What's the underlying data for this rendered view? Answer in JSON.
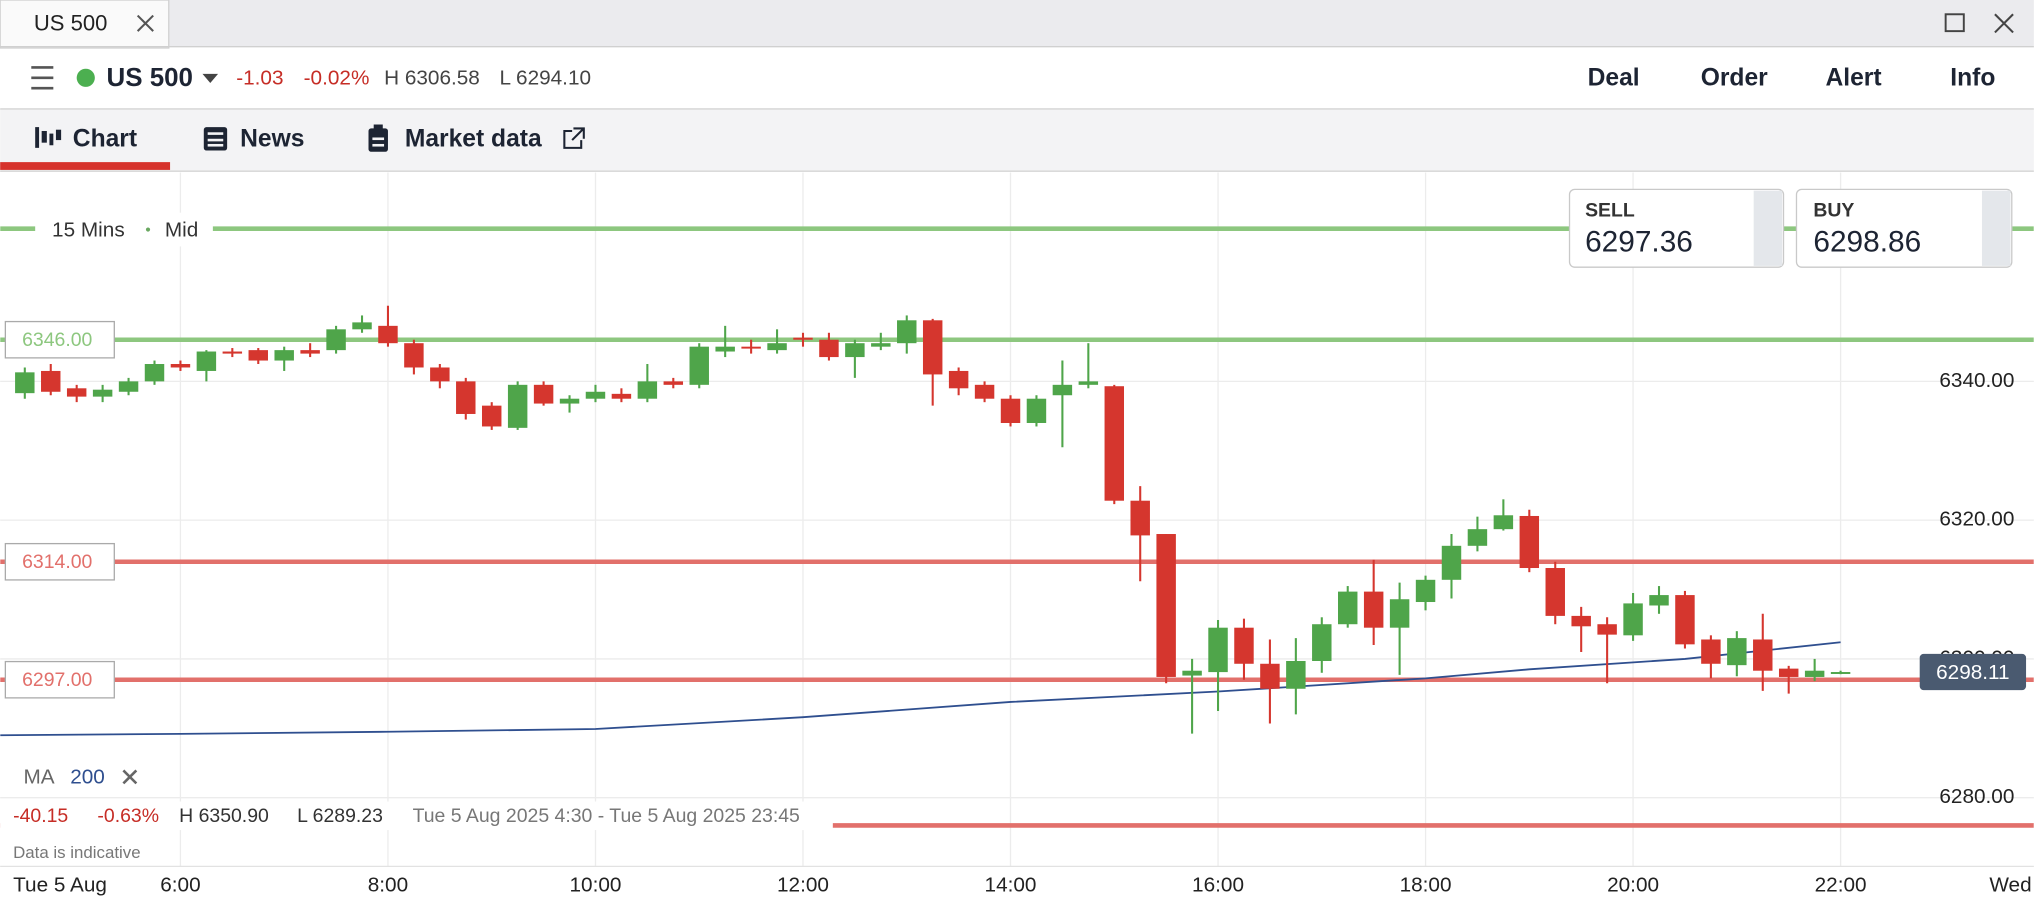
{
  "window": {
    "tab": "US 500"
  },
  "header": {
    "instrument": "US 500",
    "change": "-1.03",
    "change_pct": "-0.02%",
    "high": "H 6306.58",
    "low": "L 6294.10",
    "actions": [
      "Deal",
      "Order",
      "Alert",
      "Info"
    ]
  },
  "tabs": [
    "Chart",
    "News",
    "Market data"
  ],
  "quote": {
    "sell_label": "SELL",
    "sell": "6297.36",
    "buy_label": "BUY",
    "buy": "6298.86"
  },
  "chart_controls": {
    "timeframe": "15 Mins",
    "price_type": "Mid"
  },
  "summary": {
    "change": "-40.15",
    "change_pct": "-0.63%",
    "high": "H 6350.90",
    "low": "L 6289.23",
    "range": "Tue 5 Aug 2025 4:30 - Tue 5 Aug 2025 23:45",
    "note": "Data is indicative"
  },
  "chart_data": {
    "type": "candlestick",
    "x": [
      4.5,
      4.75,
      5,
      5.25,
      5.5,
      5.75,
      6,
      6.25,
      6.5,
      6.75,
      7,
      7.25,
      7.5,
      7.75,
      8,
      8.25,
      8.5,
      8.75,
      9,
      9.25,
      9.5,
      9.75,
      10,
      10.25,
      10.5,
      10.75,
      11,
      11.25,
      11.5,
      11.75,
      12,
      12.25,
      12.5,
      12.75,
      13,
      13.25,
      13.5,
      13.75,
      14,
      14.25,
      14.5,
      14.75,
      15,
      15.25,
      15.5,
      15.75,
      16,
      16.25,
      16.5,
      16.75,
      17,
      17.25,
      17.5,
      17.75,
      18,
      18.25,
      18.5,
      18.75,
      19,
      19.25,
      19.5,
      19.75,
      20,
      20.25,
      20.5,
      20.75,
      21,
      21.25,
      21.5,
      21.75,
      22
    ],
    "open": [
      6338.3,
      6341.5,
      6339,
      6337.8,
      6338.5,
      6340,
      6342.5,
      6341.5,
      6344.3,
      6344.5,
      6343,
      6344.5,
      6344.5,
      6347.5,
      6348,
      6345.5,
      6342,
      6340,
      6336.5,
      6333.3,
      6339.5,
      6336.8,
      6337.5,
      6338.2,
      6337.5,
      6340,
      6339.5,
      6344.3,
      6345,
      6344.5,
      6346.3,
      6346,
      6343.5,
      6345,
      6345.5,
      6348.8,
      6341.5,
      6339.5,
      6337.5,
      6334,
      6338,
      6339.5,
      6339.3,
      6322.8,
      6318,
      6297.6,
      6298.1,
      6304.5,
      6299.3,
      6295.7,
      6299.7,
      6305,
      6309.7,
      6304.5,
      6308.2,
      6311.4,
      6316.3,
      6318.7,
      6320.6,
      6313.1,
      6306.2,
      6305,
      6303.4,
      6307.7,
      6309.2,
      6302.8,
      6299.1,
      6302.8,
      6298.6,
      6297.4,
      6298
    ],
    "high": [
      6342,
      6342.5,
      6339.5,
      6339.5,
      6340.5,
      6343,
      6343,
      6344.5,
      6344.8,
      6344.8,
      6345,
      6345.5,
      6348,
      6349.5,
      6350.9,
      6346,
      6342.5,
      6340.5,
      6337,
      6340,
      6340,
      6338,
      6339.5,
      6339,
      6342.5,
      6340.5,
      6345.5,
      6348,
      6346,
      6347.5,
      6347,
      6347,
      6346,
      6347,
      6349.5,
      6349,
      6342,
      6340,
      6338,
      6338,
      6343,
      6345.5,
      6339.5,
      6324.9,
      6318,
      6300,
      6305.6,
      6305.8,
      6302.8,
      6303,
      6306,
      6310.5,
      6314.3,
      6311,
      6312,
      6318,
      6320.5,
      6323,
      6321.5,
      6314,
      6307.5,
      6306,
      6309.5,
      6310.5,
      6309.8,
      6303.4,
      6304,
      6306.5,
      6299,
      6300,
      6298.3
    ],
    "low": [
      6337.5,
      6338,
      6337,
      6337,
      6338,
      6339.5,
      6341.5,
      6340,
      6343.5,
      6342.5,
      6341.5,
      6343.5,
      6344,
      6347,
      6345,
      6341,
      6339,
      6334.5,
      6333,
      6333,
      6336.5,
      6335.5,
      6337,
      6337,
      6337,
      6339,
      6339,
      6343.5,
      6344,
      6344,
      6345,
      6343,
      6340.5,
      6344.5,
      6344,
      6336.5,
      6338,
      6337,
      6333.5,
      6333.5,
      6330.5,
      6339,
      6322.3,
      6311.2,
      6296.5,
      6289.23,
      6292.5,
      6297,
      6290.7,
      6292,
      6298,
      6304.5,
      6302,
      6297.7,
      6307,
      6308.7,
      6315.5,
      6318.5,
      6312.5,
      6305,
      6301,
      6296.5,
      6302.6,
      6306.5,
      6301.5,
      6297.2,
      6297.5,
      6295.4,
      6295,
      6296.8,
      6297.8
    ],
    "close": [
      6341.3,
      6338.5,
      6337.8,
      6338.8,
      6340,
      6342.5,
      6342,
      6344.3,
      6344,
      6343,
      6344.5,
      6344,
      6347.5,
      6348.5,
      6345.5,
      6342,
      6340,
      6335.3,
      6333.5,
      6339.5,
      6336.8,
      6337.5,
      6338.5,
      6337.5,
      6340,
      6339.5,
      6345,
      6345,
      6344.8,
      6345.5,
      6346,
      6343.5,
      6345.5,
      6345.5,
      6348.8,
      6341,
      6339,
      6337.5,
      6334,
      6337.5,
      6339.5,
      6340,
      6322.8,
      6317.8,
      6297.4,
      6298.3,
      6304.5,
      6299.3,
      6295.7,
      6299.7,
      6305,
      6309.7,
      6304.5,
      6308.6,
      6311.4,
      6316.3,
      6318.7,
      6320.7,
      6313.1,
      6306.2,
      6304.7,
      6303.5,
      6308,
      6309.2,
      6302.1,
      6299.3,
      6303,
      6298.3,
      6297.4,
      6298.3,
      6298.11
    ],
    "up_color": "#4fa54a",
    "down_color": "#d5362e",
    "xlim": [
      4.2625,
      23.8625
    ],
    "xticks": [
      {
        "value": 6,
        "label": "6:00"
      },
      {
        "value": 8,
        "label": "8:00"
      },
      {
        "value": 10,
        "label": "10:00"
      },
      {
        "value": 12,
        "label": "12:00"
      },
      {
        "value": 14,
        "label": "14:00"
      },
      {
        "value": 16,
        "label": "16:00"
      },
      {
        "value": 18,
        "label": "18:00"
      },
      {
        "value": 20,
        "label": "20:00"
      },
      {
        "value": 22,
        "label": "22:00"
      },
      {
        "value": 24,
        "label": "Wed"
      }
    ],
    "date_label": "Tue 5 Aug",
    "ylim": [
      6270.1,
      6370.1
    ],
    "yticks": [
      {
        "value": 6280,
        "label": "6280.00"
      },
      {
        "value": 6300,
        "label": "6300.00"
      },
      {
        "value": 6320,
        "label": "6320.00"
      },
      {
        "value": 6340,
        "label": "6340.00"
      }
    ],
    "grid": true,
    "levels": [
      {
        "value": 6362,
        "color": "#8dc77f"
      },
      {
        "value": 6346,
        "label": "6346.00",
        "color": "#8dc77f"
      },
      {
        "value": 6314,
        "label": "6314.00",
        "color": "#e2706b"
      },
      {
        "value": 6297,
        "label": "6297.00",
        "color": "#e2706b"
      },
      {
        "value": 6276,
        "color": "#e2706b"
      }
    ],
    "ma": {
      "name": "MA",
      "period": 200,
      "color": "#2f4f8f",
      "x": [
        4.2625,
        6,
        8,
        10,
        12,
        14,
        16,
        18,
        19,
        20.5,
        22
      ],
      "values": [
        6289.0,
        6289.2,
        6289.5,
        6289.9,
        6291.6,
        6293.8,
        6295.3,
        6297.2,
        6298.5,
        6300.0,
        6302.4
      ]
    },
    "last_price": {
      "value": 6298.11,
      "label": "6298.11",
      "color": "#4a5a70"
    }
  }
}
